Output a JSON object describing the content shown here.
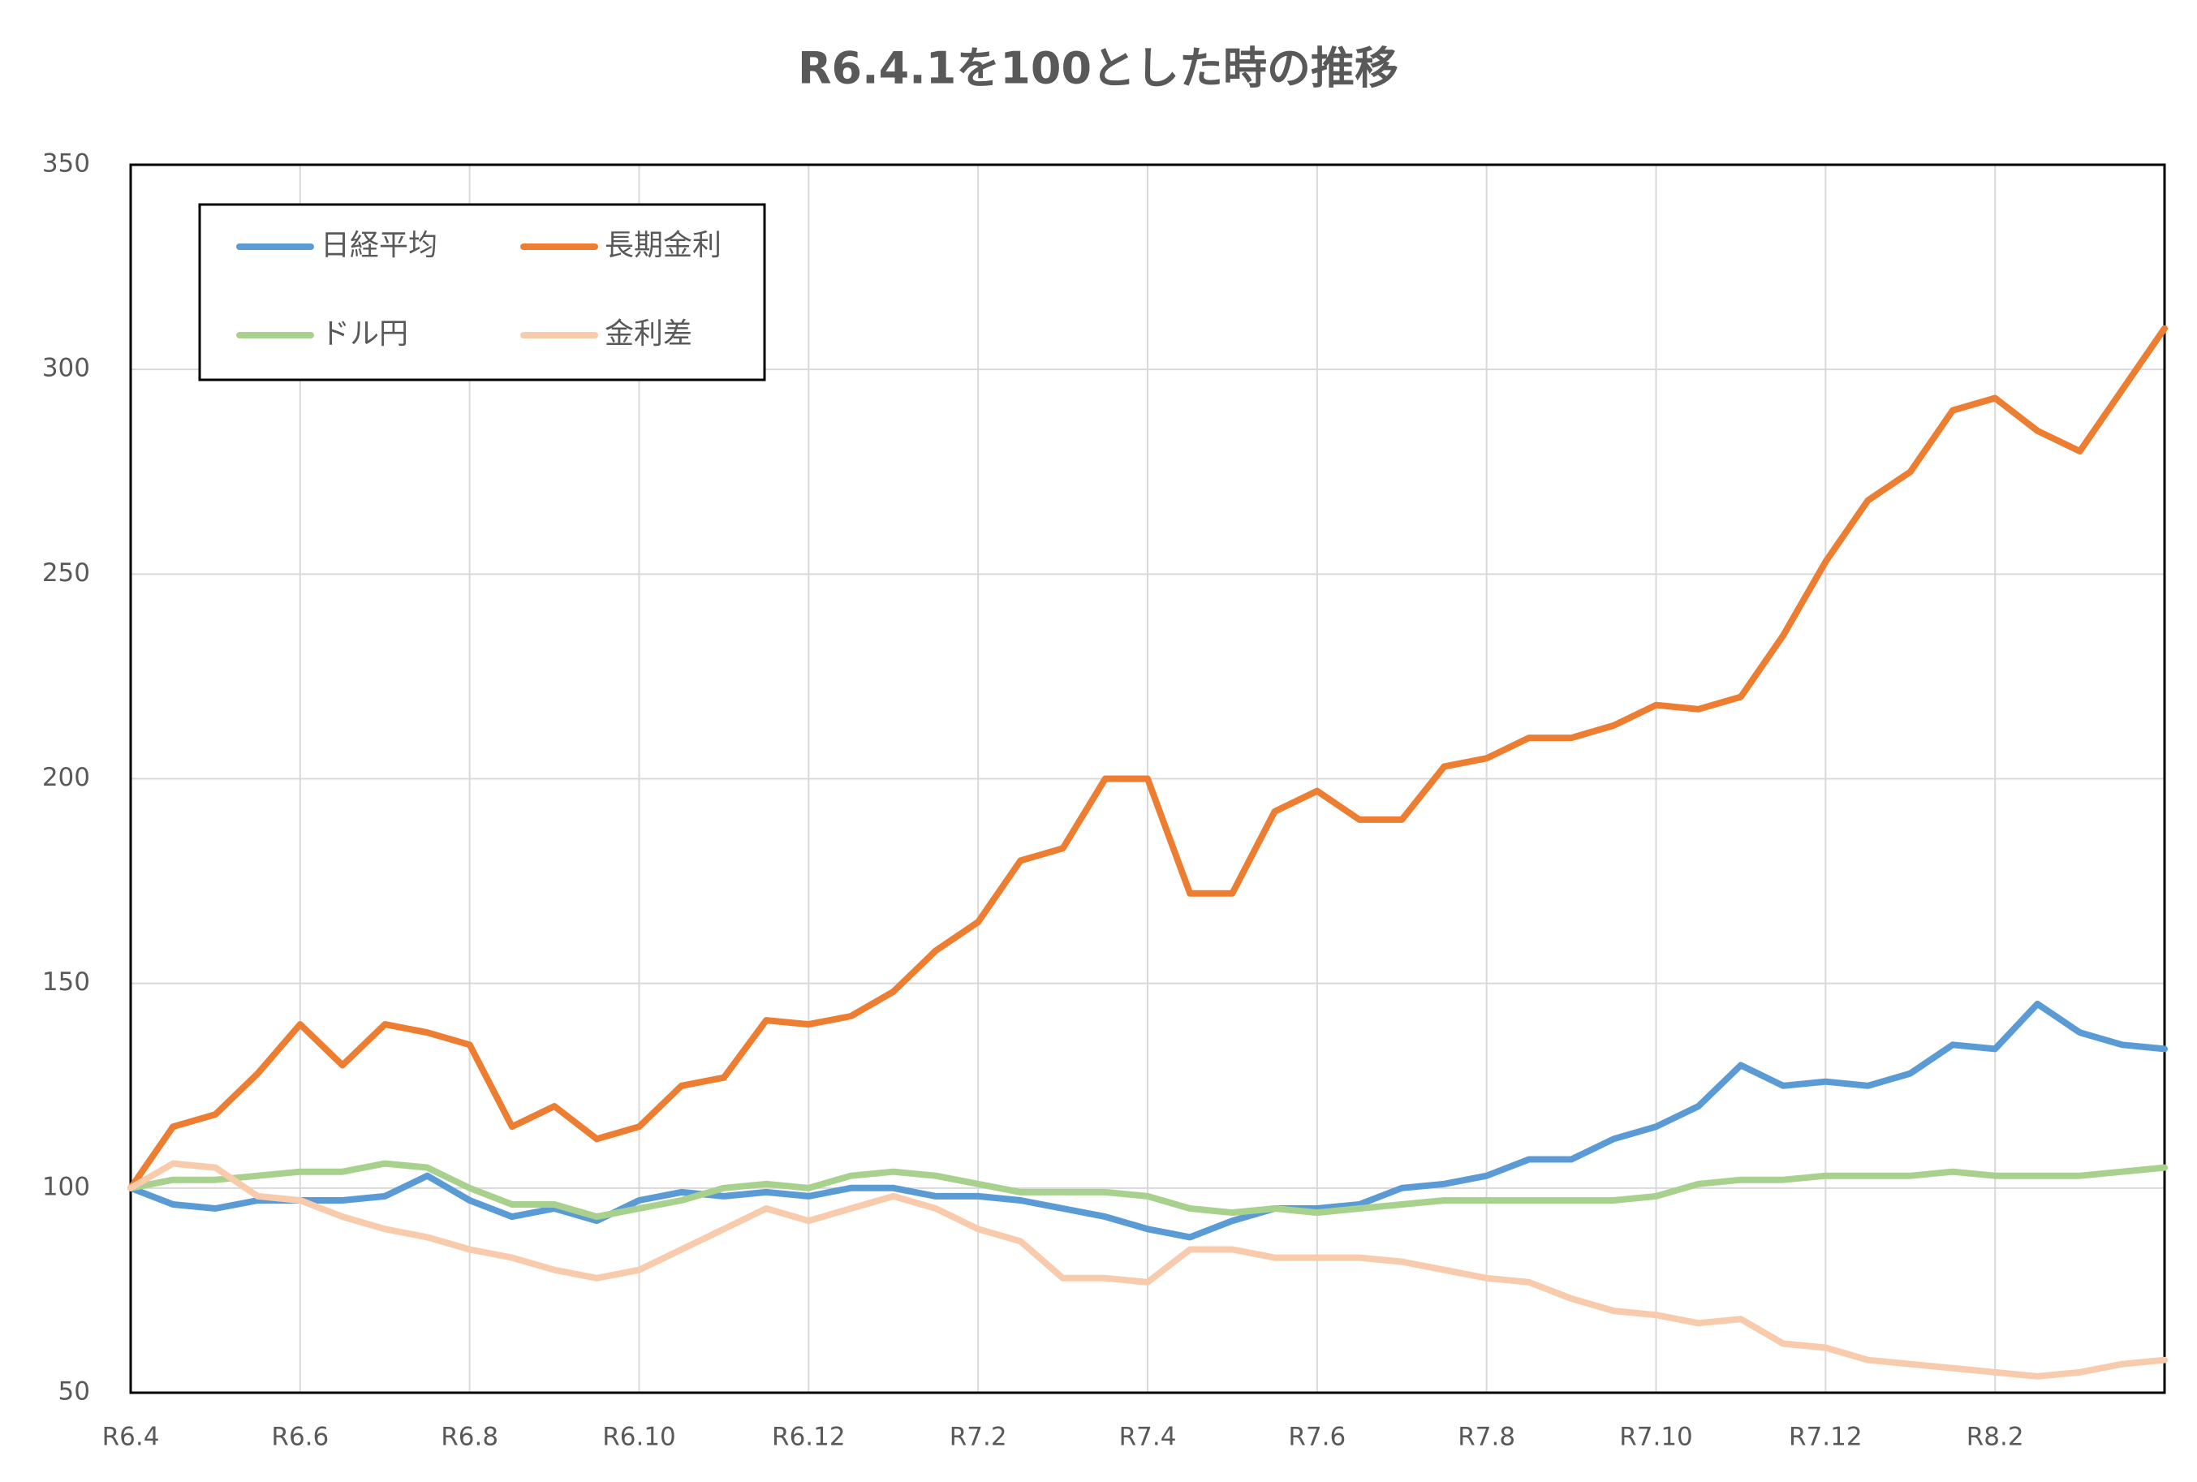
{
  "chart_data": {
    "type": "line",
    "title": "R6.4.1を100とした時の推移",
    "categories": [
      "R6.4",
      null,
      null,
      null,
      "R6.6",
      null,
      null,
      null,
      "R6.8",
      null,
      null,
      null,
      "R6.10",
      null,
      null,
      null,
      "R6.12",
      null,
      null,
      null,
      "R7.2",
      null,
      null,
      null,
      "R7.4",
      null,
      null,
      null,
      "R7.6",
      null,
      null,
      null,
      "R7.8",
      null,
      null,
      null,
      "R7.10",
      null,
      null,
      null,
      "R7.12",
      null,
      null,
      null,
      "R8.2",
      null,
      null,
      null,
      null
    ],
    "series": [
      {
        "name": "日経平均",
        "color": "#5b9bd5",
        "values": [
          100,
          96,
          95,
          97,
          97,
          97,
          98,
          103,
          97,
          93,
          95,
          92,
          97,
          99,
          98,
          99,
          98,
          100,
          100,
          98,
          98,
          97,
          95,
          93,
          90,
          88,
          92,
          95,
          95,
          96,
          100,
          101,
          103,
          107,
          107,
          112,
          115,
          120,
          130,
          125,
          126,
          125,
          128,
          135,
          134,
          145,
          138,
          135,
          134
        ]
      },
      {
        "name": "長期金利",
        "color": "#ed7d31",
        "values": [
          100,
          115,
          118,
          128,
          140,
          130,
          140,
          138,
          135,
          115,
          120,
          112,
          115,
          125,
          127,
          141,
          140,
          142,
          148,
          158,
          165,
          180,
          183,
          200,
          200,
          172,
          172,
          192,
          197,
          190,
          190,
          203,
          205,
          210,
          210,
          213,
          218,
          217,
          220,
          235,
          253,
          268,
          275,
          290,
          293,
          285,
          280,
          295,
          310
        ]
      },
      {
        "name": "ドル円",
        "color": "#a9d18e",
        "values": [
          100,
          102,
          102,
          103,
          104,
          104,
          106,
          105,
          100,
          96,
          96,
          93,
          95,
          97,
          100,
          101,
          100,
          103,
          104,
          103,
          101,
          99,
          99,
          99,
          98,
          95,
          94,
          95,
          94,
          95,
          96,
          97,
          97,
          97,
          97,
          97,
          98,
          101,
          102,
          102,
          103,
          103,
          103,
          104,
          103,
          103,
          103,
          104,
          105
        ]
      },
      {
        "name": "金利差",
        "color": "#f8cbad",
        "values": [
          100,
          106,
          105,
          98,
          97,
          93,
          90,
          88,
          85,
          83,
          80,
          78,
          80,
          85,
          90,
          95,
          92,
          95,
          98,
          95,
          90,
          87,
          78,
          78,
          77,
          85,
          85,
          83,
          83,
          83,
          82,
          80,
          78,
          77,
          73,
          70,
          69,
          67,
          68,
          62,
          61,
          58,
          57,
          56,
          55,
          54,
          55,
          57,
          58
        ]
      }
    ],
    "ylim": [
      50,
      350
    ],
    "yticks": [
      50,
      100,
      150,
      200,
      250,
      300,
      350
    ],
    "grid": true
  }
}
